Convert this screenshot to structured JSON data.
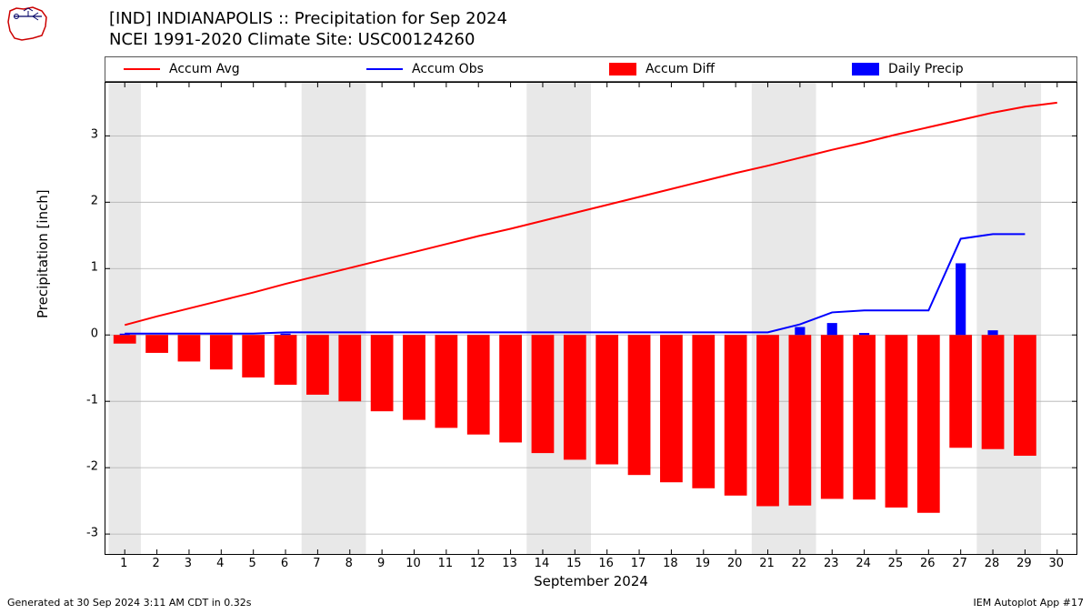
{
  "title_line1": "[IND] INDIANAPOLIS :: Precipitation for Sep 2024",
  "title_line2": "NCEI 1991-2020 Climate Site: USC00124260",
  "legend": {
    "accum_avg": "Accum Avg",
    "accum_obs": "Accum Obs",
    "accum_diff": "Accum Diff",
    "daily_precip": "Daily Precip"
  },
  "colors": {
    "accum_avg": "#ff0000",
    "accum_obs": "#0000ff",
    "accum_diff": "#ff0000",
    "daily_precip": "#0000ff",
    "background": "#ffffff",
    "weekend_band": "#e8e8e8",
    "grid": "#b0b0b0",
    "border": "#000000",
    "text": "#000000"
  },
  "axes": {
    "ylabel": "Precipitation [inch]",
    "xlabel": "September 2024",
    "xlim": [
      0.4,
      30.6
    ],
    "ylim": [
      -3.3,
      3.8
    ],
    "yticks": [
      -3,
      -2,
      -1,
      0,
      1,
      2,
      3
    ],
    "xticks": [
      1,
      2,
      3,
      4,
      5,
      6,
      7,
      8,
      9,
      10,
      11,
      12,
      13,
      14,
      15,
      16,
      17,
      18,
      19,
      20,
      21,
      22,
      23,
      24,
      25,
      26,
      27,
      28,
      29,
      30
    ],
    "label_fontsize": 15,
    "tick_fontsize": 13,
    "title_fontsize": 18
  },
  "weekend_bands": [
    [
      0.5,
      1.5
    ],
    [
      6.5,
      8.5
    ],
    [
      13.5,
      15.5
    ],
    [
      20.5,
      22.5
    ],
    [
      27.5,
      29.5
    ]
  ],
  "series": {
    "days": [
      1,
      2,
      3,
      4,
      5,
      6,
      7,
      8,
      9,
      10,
      11,
      12,
      13,
      14,
      15,
      16,
      17,
      18,
      19,
      20,
      21,
      22,
      23,
      24,
      25,
      26,
      27,
      28,
      29,
      30
    ],
    "accum_avg": [
      0.15,
      0.28,
      0.4,
      0.52,
      0.64,
      0.77,
      0.89,
      1.01,
      1.13,
      1.25,
      1.37,
      1.49,
      1.6,
      1.72,
      1.84,
      1.96,
      2.08,
      2.2,
      2.32,
      2.44,
      2.55,
      2.67,
      2.79,
      2.9,
      3.02,
      3.13,
      3.24,
      3.35,
      3.44,
      3.5
    ],
    "accum_obs": [
      0.02,
      0.02,
      0.02,
      0.02,
      0.02,
      0.04,
      0.04,
      0.04,
      0.04,
      0.04,
      0.04,
      0.04,
      0.04,
      0.04,
      0.04,
      0.04,
      0.04,
      0.04,
      0.04,
      0.04,
      0.04,
      0.16,
      0.34,
      0.37,
      0.37,
      0.37,
      1.45,
      1.52,
      1.52,
      null
    ],
    "accum_diff": [
      -0.13,
      -0.27,
      -0.4,
      -0.52,
      -0.64,
      -0.75,
      -0.9,
      -1.0,
      -1.15,
      -1.28,
      -1.4,
      -1.5,
      -1.62,
      -1.78,
      -1.88,
      -1.95,
      -2.11,
      -2.22,
      -2.31,
      -2.42,
      -2.58,
      -2.57,
      -2.47,
      -2.48,
      -2.6,
      -2.68,
      -1.7,
      -1.72,
      -1.82,
      null
    ],
    "daily_precip": [
      0.02,
      0,
      0,
      0,
      0,
      0.02,
      0,
      0,
      0,
      0,
      0,
      0,
      0,
      0,
      0,
      0,
      0,
      0,
      0,
      0,
      0,
      0.12,
      0.18,
      0.03,
      0,
      0,
      1.08,
      0.07,
      0,
      null
    ]
  },
  "style": {
    "line_width": 2,
    "bar_width": 0.7
  },
  "footer_left": "Generated at 30 Sep 2024 3:11 AM CDT in 0.32s",
  "footer_right": "IEM Autoplot App #17"
}
